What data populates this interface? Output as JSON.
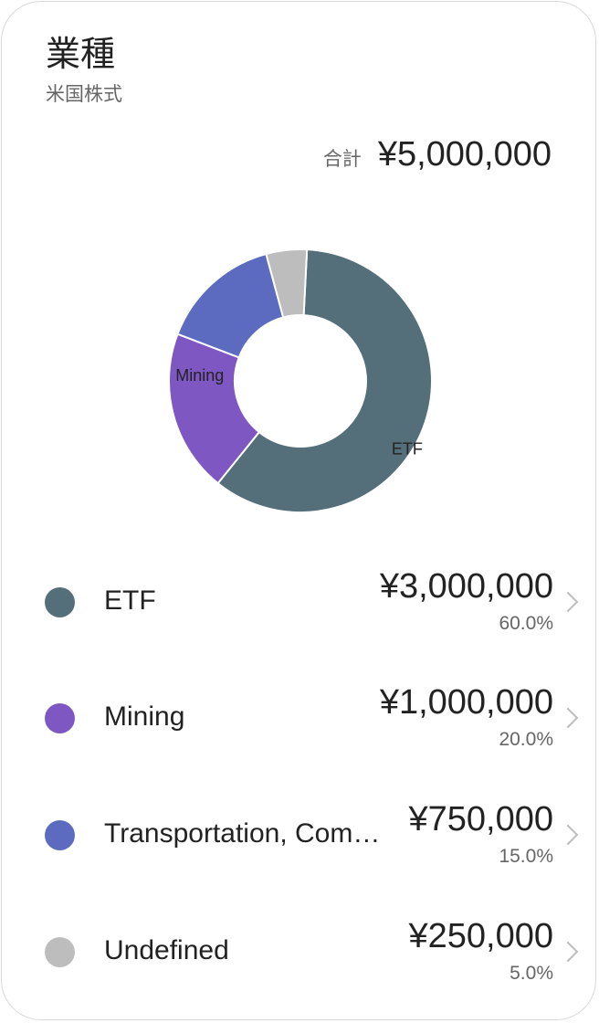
{
  "header": {
    "title": "業種",
    "subtitle": "米国株式"
  },
  "total": {
    "label": "合計",
    "value": "¥5,000,000"
  },
  "chart_data": {
    "type": "pie",
    "categories": [
      "ETF",
      "Mining",
      "Transportation, Com…",
      "Undefined"
    ],
    "values": [
      60.0,
      20.0,
      15.0,
      5.0
    ],
    "colors": [
      "#546e7a",
      "#7e57c2",
      "#5c6bc0",
      "#bdbdbd"
    ],
    "slice_labels": [
      "ETF",
      "Mining",
      "",
      ""
    ]
  },
  "legend": [
    {
      "label": "ETF",
      "value": "¥3,000,000",
      "percent": "60.0%",
      "color": "#546e7a"
    },
    {
      "label": "Mining",
      "value": "¥1,000,000",
      "percent": "20.0%",
      "color": "#7e57c2"
    },
    {
      "label": "Transportation, Com…",
      "value": "¥750,000",
      "percent": "15.0%",
      "color": "#5c6bc0"
    },
    {
      "label": "Undefined",
      "value": "¥250,000",
      "percent": "5.0%",
      "color": "#bdbdbd"
    }
  ]
}
